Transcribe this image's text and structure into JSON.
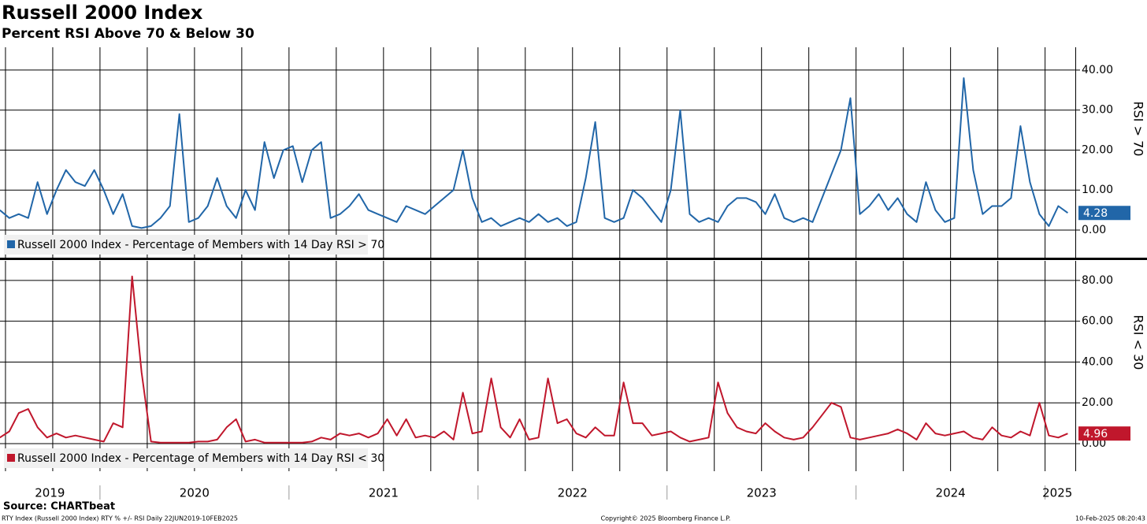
{
  "header": {
    "title": "Russell 2000 Index",
    "subtitle": "Percent RSI Above 70 & Below 30"
  },
  "footer": {
    "source": "Source: CHARTbeat",
    "ticker": "RTY Index (Russell 2000 Index) RTY % +/- RSI  Daily 22JUN2019-10FEB2025",
    "copyright": "Copyright© 2025 Bloomberg Finance L.P.",
    "timestamp": "10-Feb-2025 08:20:43"
  },
  "chart_data": [
    {
      "type": "line",
      "y_label": "RSI > 70",
      "xlim": [
        2019.471,
        2025.16
      ],
      "ylim": [
        -6.9,
        45.7
      ],
      "yticks": [
        {
          "value": 0,
          "label": "0.00"
        },
        {
          "value": 10,
          "label": "10.00"
        },
        {
          "value": 20,
          "label": "20.00"
        },
        {
          "value": 30,
          "label": "30.00"
        },
        {
          "value": 40,
          "label": "40.00"
        }
      ],
      "xticks": [
        2019.5,
        2019.75,
        2020,
        2020.25,
        2020.5,
        2020.75,
        2021,
        2021.25,
        2021.5,
        2021.75,
        2022,
        2022.25,
        2022.5,
        2022.75,
        2023,
        2023.25,
        2023.5,
        2023.75,
        2024,
        2024.25,
        2024.5,
        2024.75,
        2025
      ],
      "grid": true,
      "legend": "bottom-left",
      "x": [
        2019.47,
        2019.52,
        2019.57,
        2019.62,
        2019.67,
        2019.72,
        2019.77,
        2019.82,
        2019.87,
        2019.92,
        2019.97,
        2020.02,
        2020.07,
        2020.12,
        2020.17,
        2020.22,
        2020.27,
        2020.32,
        2020.37,
        2020.42,
        2020.47,
        2020.52,
        2020.57,
        2020.62,
        2020.67,
        2020.72,
        2020.77,
        2020.82,
        2020.87,
        2020.92,
        2020.97,
        2021.02,
        2021.07,
        2021.12,
        2021.17,
        2021.22,
        2021.27,
        2021.32,
        2021.37,
        2021.42,
        2021.47,
        2021.52,
        2021.57,
        2021.62,
        2021.67,
        2021.72,
        2021.77,
        2021.82,
        2021.87,
        2021.92,
        2021.97,
        2022.02,
        2022.07,
        2022.12,
        2022.17,
        2022.22,
        2022.27,
        2022.32,
        2022.37,
        2022.42,
        2022.47,
        2022.52,
        2022.57,
        2022.62,
        2022.67,
        2022.72,
        2022.77,
        2022.82,
        2022.87,
        2022.92,
        2022.97,
        2023.02,
        2023.07,
        2023.12,
        2023.17,
        2023.22,
        2023.27,
        2023.32,
        2023.37,
        2023.42,
        2023.47,
        2023.52,
        2023.57,
        2023.62,
        2023.67,
        2023.72,
        2023.77,
        2023.82,
        2023.87,
        2023.92,
        2023.97,
        2024.02,
        2024.07,
        2024.12,
        2024.17,
        2024.22,
        2024.27,
        2024.32,
        2024.37,
        2024.42,
        2024.47,
        2024.52,
        2024.57,
        2024.62,
        2024.67,
        2024.72,
        2024.77,
        2024.82,
        2024.87,
        2024.92,
        2024.97,
        2025.02,
        2025.07,
        2025.12
      ],
      "series": [
        {
          "name": "Russell 2000 Index - Percentage of Members with 14 Day RSI > 70",
          "color": "#2166a8",
          "values": [
            5,
            3,
            4,
            3,
            12,
            4,
            10,
            15,
            12,
            11,
            15,
            10,
            4,
            9,
            1,
            0.5,
            1,
            3,
            6,
            29,
            2,
            3,
            6,
            13,
            6,
            3,
            10,
            5,
            22,
            13,
            20,
            21,
            12,
            20,
            22,
            3,
            4,
            6,
            9,
            5,
            4,
            3,
            2,
            6,
            5,
            4,
            6,
            8,
            10,
            20,
            8,
            2,
            3,
            1,
            2,
            3,
            2,
            4,
            2,
            3,
            1,
            2,
            13,
            27,
            3,
            2,
            3,
            10,
            8,
            5,
            2,
            10,
            30,
            4,
            2,
            3,
            2,
            6,
            8,
            8,
            7,
            4,
            9,
            3,
            2,
            3,
            2,
            8,
            14,
            20,
            33,
            4,
            6,
            9,
            5,
            8,
            4,
            2,
            12,
            5,
            2,
            3,
            38,
            15,
            4,
            6,
            6,
            8,
            26,
            12,
            4,
            1,
            6,
            4.28
          ]
        }
      ]
    },
    {
      "type": "line",
      "y_label": "RSI < 30",
      "xlim": [
        2019.471,
        2025.16
      ],
      "ylim": [
        -13.5,
        89.6
      ],
      "yticks": [
        {
          "value": 0,
          "label": "0.00"
        },
        {
          "value": 20,
          "label": "20.00"
        },
        {
          "value": 40,
          "label": "40.00"
        },
        {
          "value": 60,
          "label": "60.00"
        },
        {
          "value": 80,
          "label": "80.00"
        }
      ],
      "xticks": [
        2019.5,
        2019.75,
        2020,
        2020.25,
        2020.5,
        2020.75,
        2021,
        2021.25,
        2021.5,
        2021.75,
        2022,
        2022.25,
        2022.5,
        2022.75,
        2023,
        2023.25,
        2023.5,
        2023.75,
        2024,
        2024.25,
        2024.5,
        2024.75,
        2025
      ],
      "xtick_labels": [
        {
          "value": 2019.735,
          "label": "2019"
        },
        {
          "value": 2020.5,
          "label": "2020"
        },
        {
          "value": 2021.5,
          "label": "2021"
        },
        {
          "value": 2022.5,
          "label": "2022"
        },
        {
          "value": 2023.5,
          "label": "2023"
        },
        {
          "value": 2024.5,
          "label": "2024"
        },
        {
          "value": 2025.065,
          "label": "2025"
        }
      ],
      "grid": true,
      "legend": "bottom-left",
      "x": [
        2019.47,
        2019.52,
        2019.57,
        2019.62,
        2019.67,
        2019.72,
        2019.77,
        2019.82,
        2019.87,
        2019.92,
        2019.97,
        2020.02,
        2020.07,
        2020.12,
        2020.17,
        2020.22,
        2020.27,
        2020.32,
        2020.37,
        2020.42,
        2020.47,
        2020.52,
        2020.57,
        2020.62,
        2020.67,
        2020.72,
        2020.77,
        2020.82,
        2020.87,
        2020.92,
        2020.97,
        2021.02,
        2021.07,
        2021.12,
        2021.17,
        2021.22,
        2021.27,
        2021.32,
        2021.37,
        2021.42,
        2021.47,
        2021.52,
        2021.57,
        2021.62,
        2021.67,
        2021.72,
        2021.77,
        2021.82,
        2021.87,
        2021.92,
        2021.97,
        2022.02,
        2022.07,
        2022.12,
        2022.17,
        2022.22,
        2022.27,
        2022.32,
        2022.37,
        2022.42,
        2022.47,
        2022.52,
        2022.57,
        2022.62,
        2022.67,
        2022.72,
        2022.77,
        2022.82,
        2022.87,
        2022.92,
        2022.97,
        2023.02,
        2023.07,
        2023.12,
        2023.17,
        2023.22,
        2023.27,
        2023.32,
        2023.37,
        2023.42,
        2023.47,
        2023.52,
        2023.57,
        2023.62,
        2023.67,
        2023.72,
        2023.77,
        2023.82,
        2023.87,
        2023.92,
        2023.97,
        2024.02,
        2024.07,
        2024.12,
        2024.17,
        2024.22,
        2024.27,
        2024.32,
        2024.37,
        2024.42,
        2024.47,
        2024.52,
        2024.57,
        2024.62,
        2024.67,
        2024.72,
        2024.77,
        2024.82,
        2024.87,
        2024.92,
        2024.97,
        2025.02,
        2025.07,
        2025.12
      ],
      "series": [
        {
          "name": "Russell 2000 Index - Percentage of Members with 14 Day RSI < 30",
          "color": "#c0172c",
          "values": [
            3,
            6,
            15,
            17,
            8,
            3,
            5,
            3,
            4,
            3,
            2,
            1,
            10,
            8,
            82,
            35,
            1,
            0.5,
            0.5,
            0.5,
            0.5,
            1,
            1,
            2,
            8,
            12,
            1,
            2,
            0.5,
            0.5,
            0.5,
            0.5,
            0.5,
            1,
            3,
            2,
            5,
            4,
            5,
            3,
            5,
            12,
            4,
            12,
            3,
            4,
            3,
            6,
            2,
            25,
            5,
            6,
            32,
            8,
            3,
            12,
            2,
            3,
            32,
            10,
            12,
            5,
            3,
            8,
            4,
            4,
            30,
            10,
            10,
            4,
            5,
            6,
            3,
            1,
            2,
            3,
            30,
            15,
            8,
            6,
            5,
            10,
            6,
            3,
            2,
            3,
            8,
            14,
            20,
            18,
            3,
            2,
            3,
            4,
            5,
            7,
            5,
            2,
            10,
            5,
            4,
            5,
            6,
            3,
            2,
            8,
            4,
            3,
            6,
            4,
            20,
            4,
            3,
            4.96
          ]
        }
      ]
    }
  ]
}
